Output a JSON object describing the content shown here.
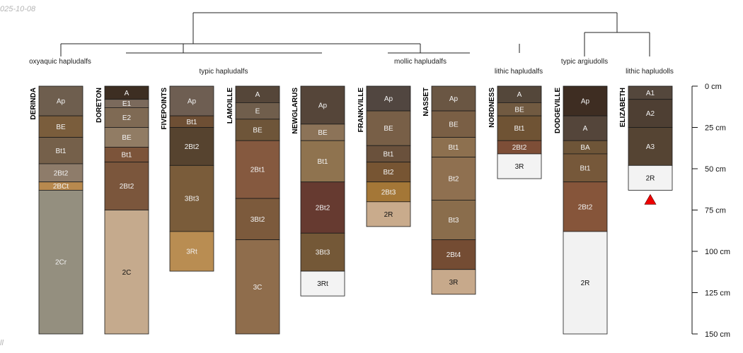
{
  "corner_text": {
    "top_left": "025-10-08",
    "bottom_left": "ll"
  },
  "depth_axis": {
    "unit": "cm",
    "max": 150,
    "ticks": [
      0,
      25,
      50,
      75,
      100,
      125,
      150
    ],
    "tick_labels": [
      "0 cm",
      "25 cm",
      "50 cm",
      "75 cm",
      "100 cm",
      "125 cm",
      "150 cm"
    ]
  },
  "groups": [
    {
      "label": "oxyaquic hapludalfs"
    },
    {
      "label": "typic hapludalfs"
    },
    {
      "label": "mollic hapludalfs"
    },
    {
      "label": "lithic hapludalfs"
    },
    {
      "label": "typic argiudolls"
    },
    {
      "label": "lithic hapludolls"
    }
  ],
  "profiles": [
    {
      "name": "DERINDA",
      "horizons": [
        {
          "name": "Ap",
          "top": 0,
          "bottom": 18,
          "color": "#6e5e4e"
        },
        {
          "name": "BE",
          "top": 18,
          "bottom": 31,
          "color": "#7a5d3c"
        },
        {
          "name": "Bt1",
          "top": 31,
          "bottom": 47,
          "color": "#75604a"
        },
        {
          "name": "2Bt2",
          "top": 47,
          "bottom": 58,
          "color": "#8e7c6a"
        },
        {
          "name": "2BCt",
          "top": 58,
          "bottom": 63,
          "color": "#b8894e"
        },
        {
          "name": "2Cr",
          "top": 63,
          "bottom": 150,
          "color": "#948f7f"
        }
      ]
    },
    {
      "name": "DORETON",
      "horizons": [
        {
          "name": "A",
          "top": 0,
          "bottom": 8,
          "color": "#3d2e22"
        },
        {
          "name": "E1",
          "top": 8,
          "bottom": 13,
          "color": "#7b6a5c"
        },
        {
          "name": "E2",
          "top": 13,
          "bottom": 25,
          "color": "#7f6a54"
        },
        {
          "name": "BE",
          "top": 25,
          "bottom": 37,
          "color": "#917c64"
        },
        {
          "name": "Bt1",
          "top": 37,
          "bottom": 46,
          "color": "#7c543a"
        },
        {
          "name": "2Bt2",
          "top": 46,
          "bottom": 75,
          "color": "#7b563c"
        },
        {
          "name": "2C",
          "top": 75,
          "bottom": 150,
          "color": "#c5aa8d"
        }
      ]
    },
    {
      "name": "FIVEPOINTS",
      "horizons": [
        {
          "name": "Ap",
          "top": 0,
          "bottom": 18,
          "color": "#6e5e52"
        },
        {
          "name": "Bt1",
          "top": 18,
          "bottom": 25,
          "color": "#6e4f34"
        },
        {
          "name": "2Bt2",
          "top": 25,
          "bottom": 48,
          "color": "#56432f"
        },
        {
          "name": "3Bt3",
          "top": 48,
          "bottom": 88,
          "color": "#7a5c3a"
        },
        {
          "name": "3Rt",
          "top": 88,
          "bottom": 112,
          "color": "#b98d52"
        }
      ]
    },
    {
      "name": "LAMOILLE",
      "horizons": [
        {
          "name": "A",
          "top": 0,
          "bottom": 10,
          "color": "#554639"
        },
        {
          "name": "E",
          "top": 10,
          "bottom": 20,
          "color": "#705e4c"
        },
        {
          "name": "BE",
          "top": 20,
          "bottom": 33,
          "color": "#6e5539"
        },
        {
          "name": "2Bt1",
          "top": 33,
          "bottom": 68,
          "color": "#85593f"
        },
        {
          "name": "3Bt2",
          "top": 68,
          "bottom": 93,
          "color": "#7c5a3c"
        },
        {
          "name": "3C",
          "top": 93,
          "bottom": 150,
          "color": "#8f6d4c"
        }
      ]
    },
    {
      "name": "NEWGLARUS",
      "horizons": [
        {
          "name": "Ap",
          "top": 0,
          "bottom": 23,
          "color": "#554539"
        },
        {
          "name": "BE",
          "top": 23,
          "bottom": 33,
          "color": "#8c7358"
        },
        {
          "name": "Bt1",
          "top": 33,
          "bottom": 58,
          "color": "#8f734f"
        },
        {
          "name": "2Bt2",
          "top": 58,
          "bottom": 89,
          "color": "#663a30"
        },
        {
          "name": "3Bt3",
          "top": 89,
          "bottom": 112,
          "color": "#745837"
        },
        {
          "name": "3Rt",
          "top": 112,
          "bottom": 127,
          "color": "#f3f3f3"
        }
      ]
    },
    {
      "name": "FRANKVILLE",
      "horizons": [
        {
          "name": "Ap",
          "top": 0,
          "bottom": 15,
          "color": "#514640"
        },
        {
          "name": "BE",
          "top": 15,
          "bottom": 36,
          "color": "#785f47"
        },
        {
          "name": "Bt1",
          "top": 36,
          "bottom": 46,
          "color": "#6a513c"
        },
        {
          "name": "Bt2",
          "top": 46,
          "bottom": 58,
          "color": "#775533"
        },
        {
          "name": "2Bt3",
          "top": 58,
          "bottom": 70,
          "color": "#a47737"
        },
        {
          "name": "2R",
          "top": 70,
          "bottom": 85,
          "color": "#c9ab8c"
        }
      ]
    },
    {
      "name": "NASSET",
      "horizons": [
        {
          "name": "Ap",
          "top": 0,
          "bottom": 15,
          "color": "#6a5643"
        },
        {
          "name": "BE",
          "top": 15,
          "bottom": 31,
          "color": "#7a5f45"
        },
        {
          "name": "Bt1",
          "top": 31,
          "bottom": 43,
          "color": "#8d704f"
        },
        {
          "name": "Bt2",
          "top": 43,
          "bottom": 69,
          "color": "#8f7050"
        },
        {
          "name": "Bt3",
          "top": 69,
          "bottom": 93,
          "color": "#8a6d4c"
        },
        {
          "name": "2Bt4",
          "top": 93,
          "bottom": 111,
          "color": "#744c33"
        },
        {
          "name": "3R",
          "top": 111,
          "bottom": 126,
          "color": "#c7a98b"
        }
      ]
    },
    {
      "name": "NORDNESS",
      "horizons": [
        {
          "name": "A",
          "top": 0,
          "bottom": 10,
          "color": "#54473a"
        },
        {
          "name": "BE",
          "top": 10,
          "bottom": 18,
          "color": "#715a41"
        },
        {
          "name": "Bt1",
          "top": 18,
          "bottom": 33,
          "color": "#6f5334"
        },
        {
          "name": "2Bt2",
          "top": 33,
          "bottom": 41,
          "color": "#7d4e37"
        },
        {
          "name": "3R",
          "top": 41,
          "bottom": 56,
          "color": "#f3f3f3"
        }
      ]
    },
    {
      "name": "DODGEVILLE",
      "horizons": [
        {
          "name": "Ap",
          "top": 0,
          "bottom": 18,
          "color": "#3e2d22"
        },
        {
          "name": "A",
          "top": 18,
          "bottom": 33,
          "color": "#54453a"
        },
        {
          "name": "BA",
          "top": 33,
          "bottom": 41,
          "color": "#6e5538"
        },
        {
          "name": "Bt1",
          "top": 41,
          "bottom": 58,
          "color": "#76583a"
        },
        {
          "name": "2Bt2",
          "top": 58,
          "bottom": 88,
          "color": "#86553a"
        },
        {
          "name": "2R",
          "top": 88,
          "bottom": 150,
          "color": "#f2f2f2"
        }
      ]
    },
    {
      "name": "ELIZABETH",
      "horizons": [
        {
          "name": "A1",
          "top": 0,
          "bottom": 8,
          "color": "#54473c"
        },
        {
          "name": "A2",
          "top": 8,
          "bottom": 25,
          "color": "#4e3f33"
        },
        {
          "name": "A3",
          "top": 25,
          "bottom": 48,
          "color": "#554433"
        },
        {
          "name": "2R",
          "top": 48,
          "bottom": 63,
          "color": "#f3f3f3"
        }
      ]
    }
  ]
}
